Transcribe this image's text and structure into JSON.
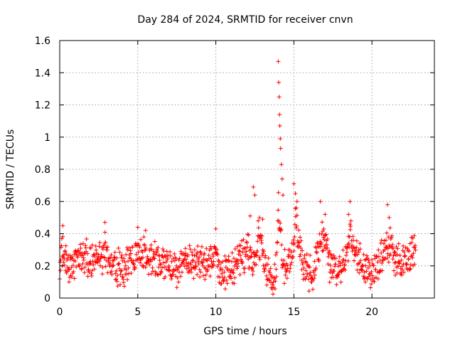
{
  "chart_data": {
    "type": "scatter",
    "title": "Day 284 of 2024, SRMTID for receiver cnvn",
    "xlabel": "GPS time / hours",
    "ylabel": "SRMTID / TECUs",
    "xlim": [
      0,
      24
    ],
    "ylim": [
      0,
      1.6
    ],
    "x_ticks": [
      0,
      5,
      10,
      15,
      20
    ],
    "x_tick_labels": [
      "0",
      "5",
      "10",
      "15",
      "20"
    ],
    "y_ticks": [
      0,
      0.2,
      0.4,
      0.6,
      0.8,
      1.0,
      1.2,
      1.4,
      1.6
    ],
    "y_tick_labels": [
      "0",
      "0.2",
      "0.4",
      "0.6",
      "0.8",
      "1",
      "1.2",
      "1.4",
      "1.6"
    ],
    "grid": true,
    "marker": "+",
    "marker_color": "#ff0000",
    "data_extent_hours": [
      0,
      22.8
    ],
    "series": [
      {
        "name": "SRMTID",
        "profile": [
          [
            0.0,
            0.22
          ],
          [
            0.3,
            0.3
          ],
          [
            0.6,
            0.2
          ],
          [
            1.0,
            0.24
          ],
          [
            1.5,
            0.23
          ],
          [
            2.0,
            0.26
          ],
          [
            2.5,
            0.22
          ],
          [
            2.9,
            0.3
          ],
          [
            3.3,
            0.2
          ],
          [
            4.0,
            0.19
          ],
          [
            4.5,
            0.22
          ],
          [
            5.0,
            0.3
          ],
          [
            5.5,
            0.26
          ],
          [
            6.0,
            0.24
          ],
          [
            6.5,
            0.22
          ],
          [
            7.0,
            0.2
          ],
          [
            7.5,
            0.17
          ],
          [
            8.0,
            0.22
          ],
          [
            8.5,
            0.21
          ],
          [
            9.0,
            0.24
          ],
          [
            9.5,
            0.22
          ],
          [
            10.0,
            0.27
          ],
          [
            10.5,
            0.16
          ],
          [
            11.0,
            0.2
          ],
          [
            11.5,
            0.25
          ],
          [
            12.0,
            0.3
          ],
          [
            12.4,
            0.22
          ],
          [
            12.7,
            0.38
          ],
          [
            13.0,
            0.3
          ],
          [
            13.3,
            0.16
          ],
          [
            13.7,
            0.12
          ],
          [
            13.9,
            0.2
          ],
          [
            14.0,
            0.55
          ],
          [
            14.1,
            0.45
          ],
          [
            14.3,
            0.2
          ],
          [
            14.6,
            0.18
          ],
          [
            15.0,
            0.3
          ],
          [
            15.1,
            0.5
          ],
          [
            15.4,
            0.3
          ],
          [
            15.8,
            0.15
          ],
          [
            16.2,
            0.14
          ],
          [
            16.7,
            0.35
          ],
          [
            17.0,
            0.4
          ],
          [
            17.3,
            0.2
          ],
          [
            17.7,
            0.16
          ],
          [
            18.3,
            0.25
          ],
          [
            18.6,
            0.4
          ],
          [
            19.0,
            0.25
          ],
          [
            19.5,
            0.2
          ],
          [
            20.0,
            0.15
          ],
          [
            20.5,
            0.22
          ],
          [
            21.0,
            0.35
          ],
          [
            21.3,
            0.28
          ],
          [
            21.8,
            0.22
          ],
          [
            22.3,
            0.26
          ],
          [
            22.8,
            0.3
          ]
        ],
        "peaks": [
          [
            0.2,
            0.45
          ],
          [
            2.9,
            0.47
          ],
          [
            5.0,
            0.44
          ],
          [
            5.5,
            0.42
          ],
          [
            10.0,
            0.43
          ],
          [
            12.2,
            0.51
          ],
          [
            12.4,
            0.69
          ],
          [
            12.5,
            0.64
          ],
          [
            12.8,
            0.5
          ],
          [
            13.0,
            0.49
          ],
          [
            14.0,
            1.47
          ],
          [
            14.03,
            1.34
          ],
          [
            14.06,
            1.25
          ],
          [
            14.08,
            1.14
          ],
          [
            14.1,
            1.07
          ],
          [
            14.13,
            0.99
          ],
          [
            14.15,
            0.93
          ],
          [
            14.2,
            0.83
          ],
          [
            14.25,
            0.74
          ],
          [
            14.3,
            0.64
          ],
          [
            15.0,
            0.71
          ],
          [
            15.1,
            0.65
          ],
          [
            15.2,
            0.6
          ],
          [
            16.7,
            0.6
          ],
          [
            17.0,
            0.52
          ],
          [
            18.6,
            0.6
          ],
          [
            18.5,
            0.52
          ],
          [
            21.0,
            0.58
          ],
          [
            21.1,
            0.5
          ]
        ]
      }
    ]
  }
}
